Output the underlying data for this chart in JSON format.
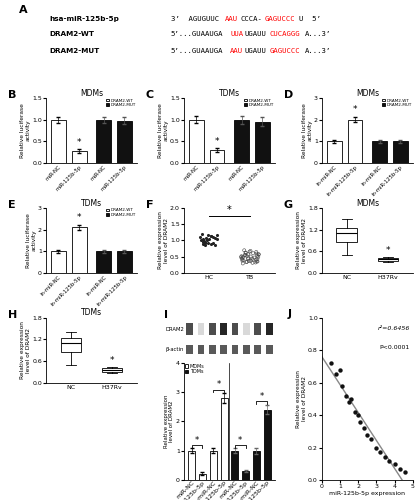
{
  "panel_A": {
    "row1_label": "hsa-miR-125b-5p",
    "row2_label": "DRAM2-WT",
    "row3_label": "DRAM2-MUT",
    "row1_parts": [
      [
        "3’  AGUGUUC",
        "black"
      ],
      [
        "AAU",
        "red"
      ],
      [
        "CCCA-",
        "black"
      ],
      [
        "GAGUCCC",
        "red"
      ],
      [
        "U  5’",
        "black"
      ]
    ],
    "row2_parts": [
      [
        "5’...GUAAUGA",
        "black"
      ],
      [
        "UUA",
        "red"
      ],
      [
        "UGAUU",
        "black"
      ],
      [
        "CUCAGGG",
        "red"
      ],
      [
        "A...3’",
        "black"
      ]
    ],
    "row3_parts": [
      [
        "5’...GUAAUGA",
        "black"
      ],
      [
        "AAU",
        "red"
      ],
      [
        "UGAUU",
        "black"
      ],
      [
        "GAGUCCC",
        "red"
      ],
      [
        "A...3’",
        "black"
      ]
    ]
  },
  "panel_B": {
    "title": "MDMs",
    "wt_vals": [
      1.0,
      0.28
    ],
    "wt_errs": [
      0.07,
      0.04
    ],
    "mut_vals": [
      1.0,
      0.97
    ],
    "mut_errs": [
      0.07,
      0.08
    ],
    "xlabels": [
      "miR-NC",
      "miR-125b-5p",
      "miR-NC",
      "miR-125b-5p"
    ],
    "ylim": [
      0,
      1.5
    ],
    "yticks": [
      0.0,
      0.5,
      1.0,
      1.5
    ],
    "star_on_wt": [
      1
    ]
  },
  "panel_C": {
    "title": "TDMs",
    "wt_vals": [
      1.0,
      0.3
    ],
    "wt_errs": [
      0.08,
      0.04
    ],
    "mut_vals": [
      1.0,
      0.95
    ],
    "mut_errs": [
      0.09,
      0.1
    ],
    "xlabels": [
      "miR-NC",
      "miR-125b-5p",
      "miR-NC",
      "miR-125b-5p"
    ],
    "ylim": [
      0,
      1.5
    ],
    "yticks": [
      0.0,
      0.5,
      1.0,
      1.5
    ],
    "star_on_wt": [
      1
    ]
  },
  "panel_D": {
    "title": "MDMs",
    "wt_vals": [
      1.0,
      2.0
    ],
    "wt_errs": [
      0.08,
      0.12
    ],
    "mut_vals": [
      1.0,
      1.0
    ],
    "mut_errs": [
      0.07,
      0.08
    ],
    "xlabels": [
      "in-miR-NC",
      "in-miR-125b-5p",
      "in-miR-NC",
      "in-miR-125b-5p"
    ],
    "ylim": [
      0,
      3
    ],
    "yticks": [
      0,
      1,
      2,
      3
    ],
    "star_on_wt": [
      1
    ]
  },
  "panel_E": {
    "title": "TDMs",
    "wt_vals": [
      1.0,
      2.1
    ],
    "wt_errs": [
      0.08,
      0.13
    ],
    "mut_vals": [
      1.0,
      1.0
    ],
    "mut_errs": [
      0.07,
      0.08
    ],
    "xlabels": [
      "in-miR-NC",
      "in-miR-125b-5p",
      "in-miR-NC",
      "in-miR-125b-5p"
    ],
    "ylim": [
      0,
      3
    ],
    "yticks": [
      0,
      1,
      2,
      3
    ],
    "star_on_wt": [
      1
    ]
  },
  "panel_F": {
    "hc_y": [
      1.0,
      1.05,
      1.1,
      1.15,
      0.95,
      0.9,
      1.02,
      1.08,
      0.88,
      0.92,
      1.12,
      1.18,
      0.85,
      0.98,
      1.06,
      1.0,
      0.93,
      1.03,
      1.16,
      0.87,
      1.14,
      1.2,
      0.96,
      1.07,
      0.91
    ],
    "tb_y": [
      0.5,
      0.45,
      0.4,
      0.55,
      0.35,
      0.6,
      0.42,
      0.38,
      0.52,
      0.48,
      0.58,
      0.33,
      0.62,
      0.44,
      0.36,
      0.56,
      0.46,
      0.53,
      0.39,
      0.65,
      0.41,
      0.57,
      0.43,
      0.5,
      0.37,
      0.61,
      0.47,
      0.54,
      0.34,
      0.63,
      0.49,
      0.51,
      0.66,
      0.32,
      0.58,
      0.44,
      0.36,
      0.68,
      0.3,
      0.7
    ],
    "ylim": [
      0,
      2.0
    ],
    "yticks": [
      0.0,
      0.5,
      1.0,
      1.5,
      2.0
    ]
  },
  "panel_G": {
    "title": "MDMs",
    "nc_stats": {
      "median": 1.1,
      "q1": 0.85,
      "q3": 1.25,
      "whislo": 0.5,
      "whishi": 1.5
    },
    "h37rv_stats": {
      "median": 0.38,
      "q1": 0.33,
      "q3": 0.42,
      "whislo": 0.3,
      "whishi": 0.45
    },
    "ylim": [
      0,
      1.8
    ],
    "yticks": [
      0.0,
      0.6,
      1.2,
      1.8
    ]
  },
  "panel_H": {
    "title": "TDMs",
    "nc_stats": {
      "median": 1.1,
      "q1": 0.85,
      "q3": 1.25,
      "whislo": 0.5,
      "whishi": 1.4
    },
    "h37rv_stats": {
      "median": 0.35,
      "q1": 0.3,
      "q3": 0.42,
      "whislo": 0.28,
      "whishi": 0.45
    },
    "ylim": [
      0,
      1.8
    ],
    "yticks": [
      0.0,
      0.6,
      1.2,
      1.8
    ]
  },
  "panel_I": {
    "xlabels": [
      "miR-NC",
      "miR-125b-5p",
      "in-miR-NC",
      "in-miR-125b-5p",
      "miR-NC",
      "miR-125b-5p",
      "in-miR-NC",
      "in-miR-125b-5p"
    ],
    "mdm_vals": [
      1.0,
      0.22,
      1.0,
      2.8,
      null,
      null,
      null,
      null
    ],
    "tdm_vals": [
      null,
      null,
      null,
      null,
      1.0,
      0.3,
      1.0,
      2.4
    ],
    "mdm_errs": [
      0.08,
      0.04,
      0.09,
      0.18,
      0,
      0,
      0,
      0
    ],
    "tdm_errs": [
      0,
      0,
      0,
      0,
      0.09,
      0.04,
      0.1,
      0.15
    ],
    "ylim": [
      0,
      4
    ],
    "yticks": [
      0,
      1,
      2,
      3,
      4
    ],
    "wb_dram2_gray": [
      0.3,
      0.85,
      0.3,
      0.15,
      0.3,
      0.85,
      0.3,
      0.15
    ],
    "wb_bactin_gray": [
      0.35,
      0.35,
      0.35,
      0.35,
      0.35,
      0.35,
      0.35,
      0.35
    ]
  },
  "panel_J": {
    "xlabel": "miR-125b-5p expression",
    "ylabel": "Relative expression\nlevel of DRAM2",
    "x_vals": [
      0.5,
      0.8,
      1.0,
      1.1,
      1.3,
      1.5,
      1.6,
      1.8,
      2.0,
      2.1,
      2.3,
      2.5,
      2.7,
      3.0,
      3.2,
      3.5,
      3.7,
      4.0,
      4.3,
      4.6
    ],
    "y_vals": [
      0.72,
      0.65,
      0.68,
      0.58,
      0.52,
      0.48,
      0.5,
      0.42,
      0.4,
      0.36,
      0.32,
      0.28,
      0.25,
      0.2,
      0.17,
      0.14,
      0.12,
      0.1,
      0.07,
      0.05
    ],
    "r2_text": "r²=0.6456",
    "p_text": "P<0.0001",
    "xlim": [
      0,
      5
    ],
    "ylim": [
      0,
      1.0
    ],
    "xticks": [
      0,
      1,
      2,
      3,
      4,
      5
    ],
    "yticks": [
      0.0,
      0.2,
      0.4,
      0.6,
      0.8,
      1.0
    ]
  }
}
